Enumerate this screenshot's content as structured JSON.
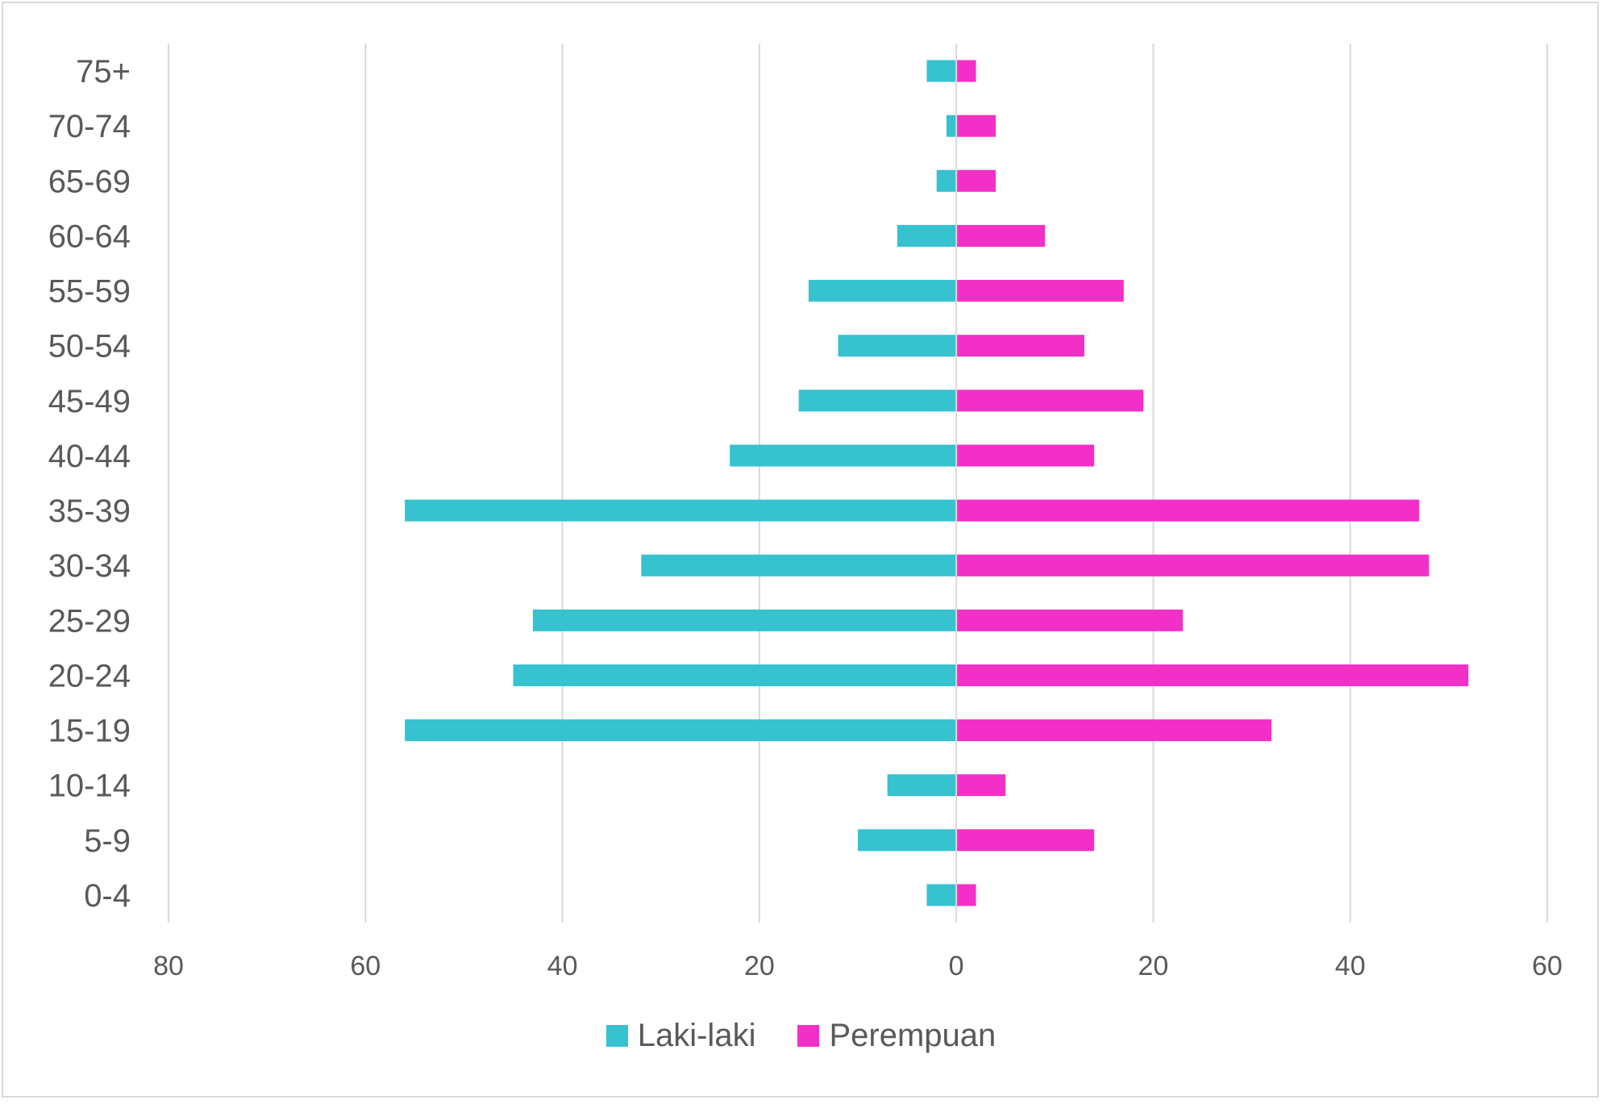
{
  "chart_data": {
    "type": "bar",
    "orientation": "horizontal",
    "layout": "population-pyramid",
    "categories": [
      "0-4",
      "5-9",
      "10-14",
      "15-19",
      "20-24",
      "25-29",
      "30-34",
      "35-39",
      "40-44",
      "45-49",
      "50-54",
      "55-59",
      "60-64",
      "65-69",
      "70-74",
      "75+"
    ],
    "series": [
      {
        "name": "Laki-laki",
        "color": "#36c2cf",
        "side": "left",
        "values": [
          3,
          10,
          7,
          56,
          45,
          43,
          32,
          56,
          23,
          16,
          12,
          15,
          6,
          2,
          1,
          3
        ]
      },
      {
        "name": "Perempuan",
        "color": "#f230c7",
        "side": "right",
        "values": [
          2,
          14,
          5,
          32,
          52,
          23,
          48,
          47,
          14,
          19,
          13,
          17,
          9,
          4,
          4,
          2
        ]
      }
    ],
    "xlim": [
      -80,
      60
    ],
    "x_ticks": [
      -80,
      -60,
      -40,
      -20,
      0,
      20,
      40,
      60
    ],
    "x_tick_labels": [
      "80",
      "60",
      "40",
      "20",
      "0",
      "20",
      "40",
      "60"
    ],
    "grid": true,
    "legend_position": "bottom",
    "title": "",
    "xlabel": "",
    "ylabel": ""
  }
}
